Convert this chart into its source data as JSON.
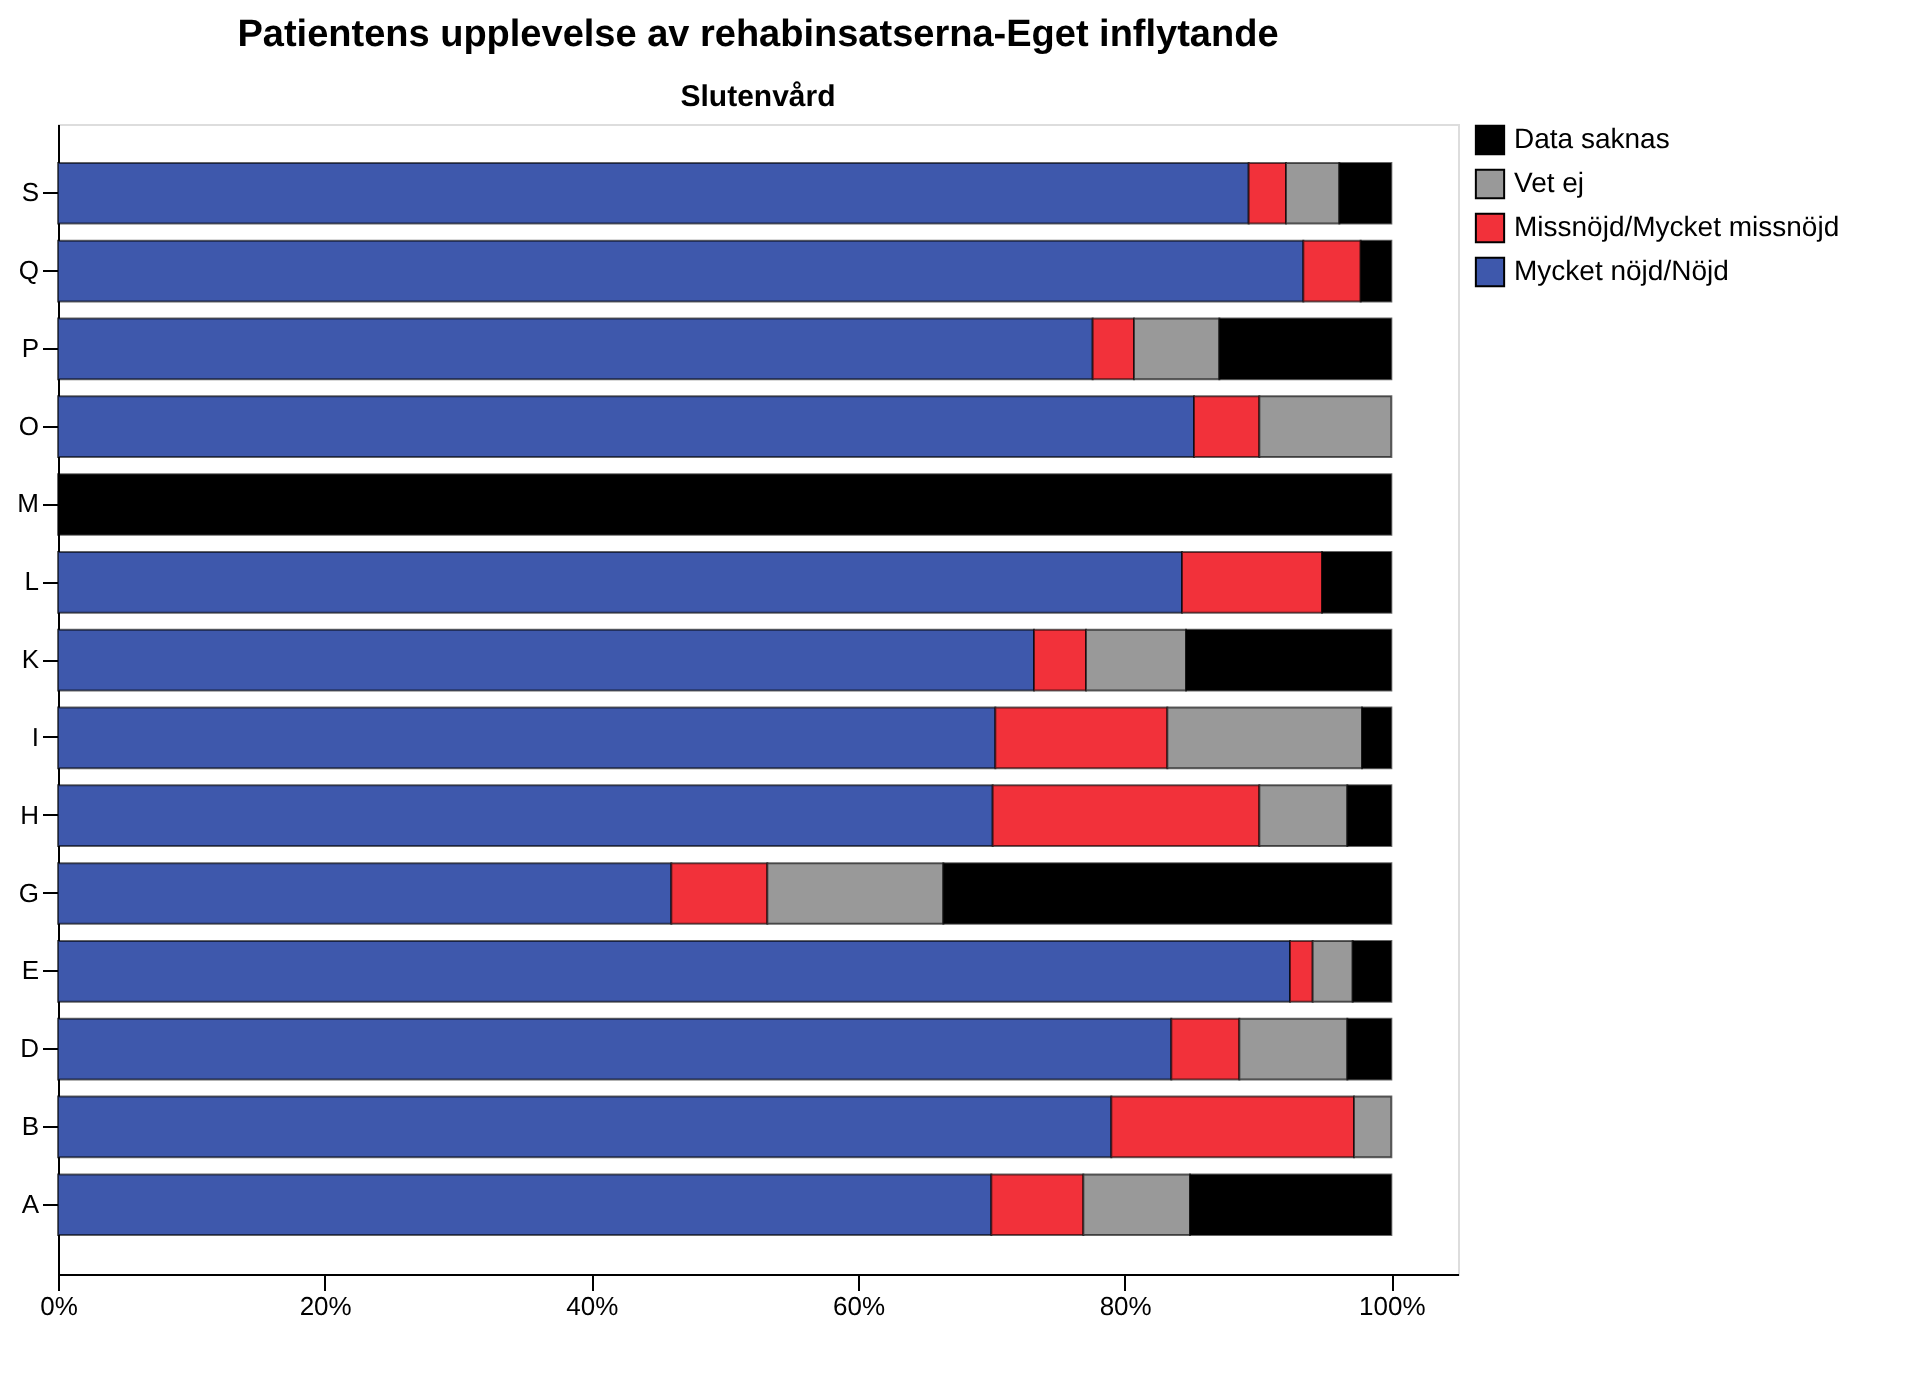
{
  "chart_data": {
    "type": "bar",
    "orientation": "horizontal",
    "stacked": true,
    "title": "Patientens upplevelse av rehabinsatserna-Eget inflytande",
    "subtitle": "Slutenvård",
    "categories": [
      "S",
      "Q",
      "P",
      "O",
      "M",
      "L",
      "K",
      "I",
      "H",
      "G",
      "E",
      "D",
      "B",
      "A"
    ],
    "series": [
      {
        "name": "Mycket nöjd/Nöjd",
        "color": "#3e58ac",
        "values": [
          89.3,
          93.4,
          77.6,
          85.2,
          null,
          84.3,
          73.2,
          70.3,
          70.1,
          46.0,
          92.4,
          83.5,
          79.0,
          70.0
        ]
      },
      {
        "name": "Missnöjd/Mycket missnöjd",
        "color": "#f2313a",
        "values": [
          2.8,
          4.3,
          3.1,
          4.9,
          null,
          10.5,
          3.9,
          12.9,
          20.0,
          7.2,
          1.7,
          5.1,
          18.2,
          6.9
        ]
      },
      {
        "name": "Vet ej",
        "color": "#999999",
        "values": [
          4.0,
          null,
          6.4,
          9.9,
          null,
          null,
          7.5,
          14.6,
          6.6,
          13.2,
          3.0,
          8.1,
          2.8,
          8.0
        ]
      },
      {
        "name": "Data saknas",
        "color": "#000000",
        "values": [
          3.9,
          2.3,
          12.9,
          null,
          100,
          5.2,
          15.4,
          2.2,
          3.3,
          33.6,
          2.9,
          3.3,
          null,
          15.1
        ]
      }
    ],
    "xlim": [
      0,
      105
    ],
    "xticks": [
      {
        "value": 0,
        "label": "0%"
      },
      {
        "value": 20,
        "label": "20%"
      },
      {
        "value": 40,
        "label": "40%"
      },
      {
        "value": 60,
        "label": "60%"
      },
      {
        "value": 80,
        "label": "80%"
      },
      {
        "value": 100,
        "label": "100%"
      }
    ],
    "grid": false,
    "legend": "right"
  }
}
